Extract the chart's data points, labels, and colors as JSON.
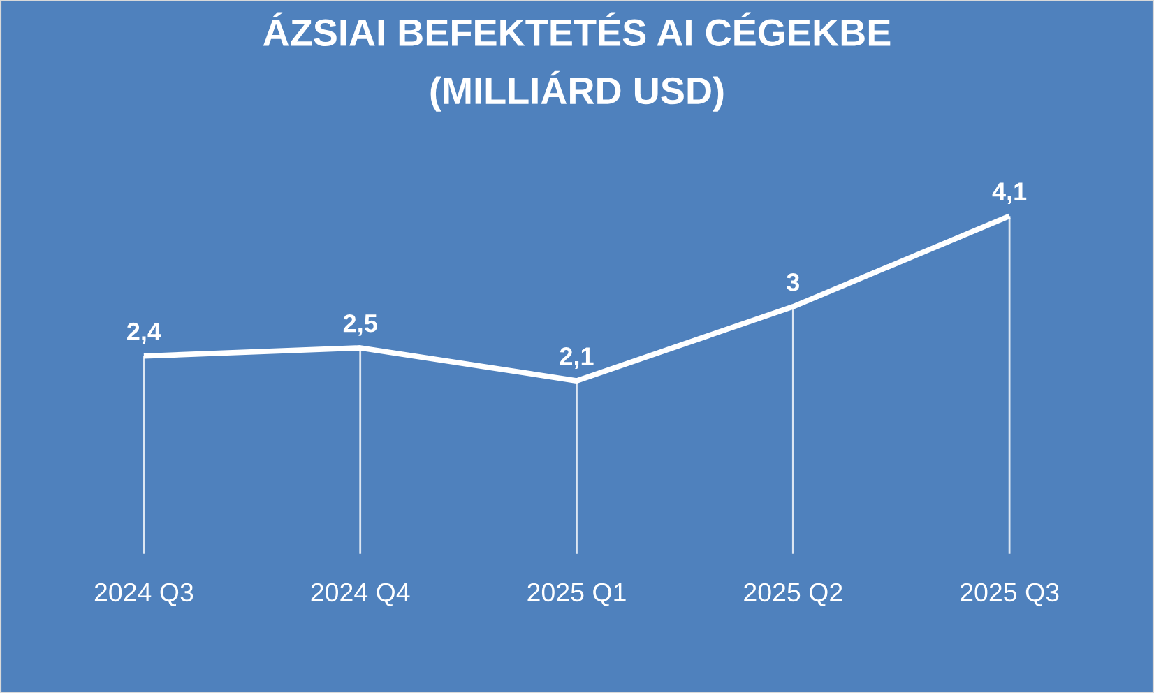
{
  "chart_data": {
    "type": "line",
    "title": "ÁZSIAI BEFEKTETÉS AI CÉGEKBE\n(MILLIÁRD USD)",
    "categories": [
      "2024 Q3",
      "2024 Q4",
      "2025 Q1",
      "2025 Q2",
      "2025 Q3"
    ],
    "values": [
      2.4,
      2.5,
      2.1,
      3,
      4.1
    ],
    "color": "#ffffff",
    "value_labels": [
      "2,4",
      "2,5",
      "2,1",
      "3",
      "4,1"
    ],
    "grid": "x",
    "tick_labels": "x",
    "line_style": "solid"
  }
}
